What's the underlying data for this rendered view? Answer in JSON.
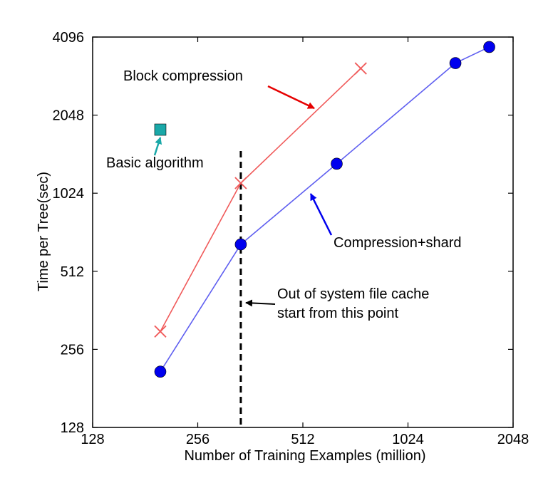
{
  "chart_data": {
    "type": "line",
    "xscale": "log2",
    "yscale": "log2",
    "xlim": [
      128,
      2048
    ],
    "ylim": [
      128,
      4096
    ],
    "x_ticks": [
      "128",
      "256",
      "512",
      "1024",
      "2048"
    ],
    "y_ticks": [
      "128",
      "256",
      "512",
      "1024",
      "2048",
      "4096"
    ],
    "xlabel": "Number of Training Examples (million)",
    "ylabel": "Time per Tree(sec)",
    "grid": false,
    "series": [
      {
        "color": "#f05a5a",
        "marker": "x",
        "x": [
          200,
          340,
          750
        ],
        "y": [
          300,
          1120,
          3100
        ]
      },
      {
        "color": "#5f5ff0",
        "marker": "circle",
        "marker_color": "#0000ee",
        "x": [
          200,
          340,
          640,
          1400,
          1750
        ],
        "y": [
          210,
          650,
          1330,
          3250,
          3750
        ]
      },
      {
        "color": "#1aa8a8",
        "marker": "square",
        "x": [
          200
        ],
        "y": [
          1800
        ]
      }
    ],
    "vline": {
      "x": 340
    },
    "annotations": [
      {
        "text": "Block compression",
        "color": "#e60000"
      },
      {
        "text": "Basic algorithm",
        "color": "#1aa8a8"
      },
      {
        "text": "Compression+shard",
        "color": "#0000ee"
      },
      {
        "text_lines": [
          "Out of system file cache",
          "start from this point"
        ],
        "color": "#000000"
      }
    ]
  }
}
